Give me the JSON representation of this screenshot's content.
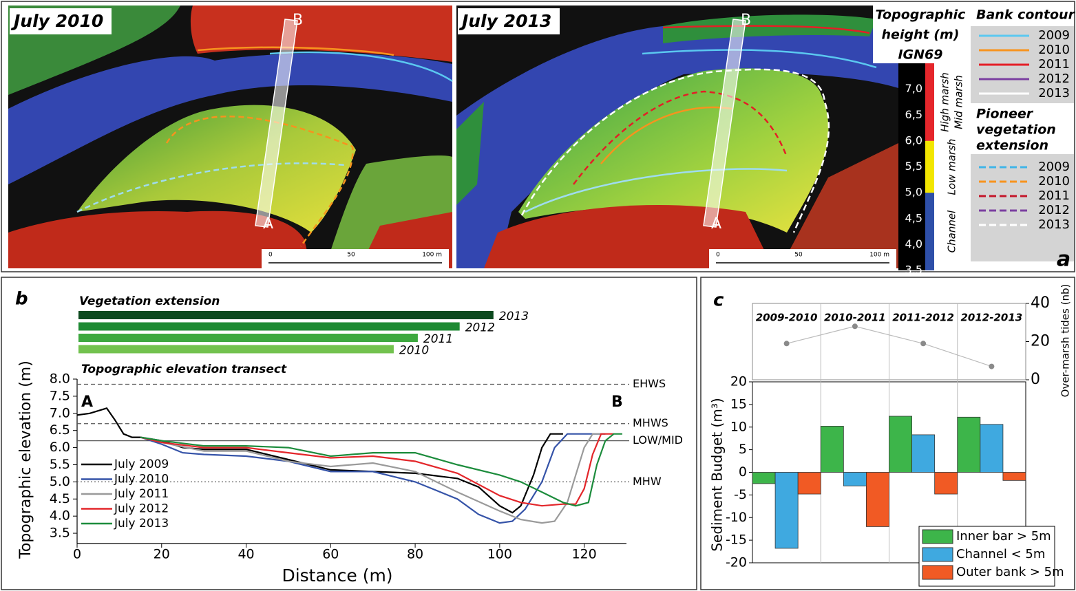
{
  "panel_a": {
    "letter": "a",
    "maps": [
      {
        "title": "July 2010"
      },
      {
        "title": "July 2013"
      }
    ],
    "transect_labels": [
      "A",
      "B"
    ],
    "scale_bar": [
      "0",
      "50",
      "100 m"
    ],
    "colorbar": {
      "title_lines": [
        "Topographic",
        "height (m)",
        "IGN69"
      ],
      "range": [
        3.5,
        7.5
      ],
      "ticks": [
        {
          "value": 7.0,
          "label": "7,0"
        },
        {
          "value": 6.5,
          "label": "6,5"
        },
        {
          "value": 6.0,
          "label": "6,0"
        },
        {
          "value": 5.5,
          "label": "5,5"
        },
        {
          "value": 5.0,
          "label": "5,0"
        },
        {
          "value": 4.5,
          "label": "4,5"
        },
        {
          "value": 4.0,
          "label": "4,0"
        },
        {
          "value": 3.5,
          "label": "3,5"
        }
      ],
      "zones": [
        {
          "labels": [
            "High marsh",
            "Mid marsh"
          ],
          "range": [
            6.0,
            7.5
          ],
          "color": "#e5262b"
        },
        {
          "labels": [
            "Low marsh"
          ],
          "range": [
            5.0,
            6.0
          ],
          "color": "#f2e600"
        },
        {
          "labels": [
            "Channel"
          ],
          "range": [
            3.5,
            5.0
          ],
          "color": "#2e4fa8"
        }
      ]
    },
    "legend": {
      "bank_contour": {
        "title_lines": [
          "Bank contour"
        ],
        "style": "solid",
        "items": [
          {
            "label": "2009",
            "color": "#5bc8f0"
          },
          {
            "label": "2010",
            "color": "#f7931e"
          },
          {
            "label": "2011",
            "color": "#e41e26"
          },
          {
            "label": "2012",
            "color": "#7b3fa0"
          },
          {
            "label": "2013",
            "color": "#ffffff"
          }
        ]
      },
      "pioneer": {
        "title_lines": [
          "Pioneer",
          "vegetation",
          "extension"
        ],
        "style": "dashed",
        "items": [
          {
            "label": "2009",
            "color": "#3fb5e8"
          },
          {
            "label": "2010",
            "color": "#f7931e"
          },
          {
            "label": "2011",
            "color": "#c4162a"
          },
          {
            "label": "2012",
            "color": "#7b3fa0"
          },
          {
            "label": "2013",
            "color": "#ffffff"
          }
        ]
      }
    }
  },
  "chart_data": [
    {
      "type": "barh",
      "title": "Vegetation extension",
      "categories": [
        "2013",
        "2012",
        "2011",
        "2010"
      ],
      "values": [
        98.2,
        90.2,
        80.3,
        74.6
      ],
      "colors": [
        "#0d4a1f",
        "#1e8a33",
        "#3da83f",
        "#72c24e"
      ],
      "xlim": [
        0,
        130
      ]
    },
    {
      "type": "line",
      "letter": "b",
      "title": "Topographic elevation transect",
      "x_label": "Distance (m)",
      "y_label": "Topographic elevation (m)",
      "xlim": [
        0,
        130
      ],
      "xticks": [
        0,
        20,
        40,
        60,
        80,
        100,
        120
      ],
      "ylim": [
        3.2,
        8.0
      ],
      "yticks": [
        3.5,
        {
          "value": 4,
          "label": "4.0"
        },
        4.5,
        {
          "value": 5,
          "label": "5.0"
        },
        5.5,
        {
          "value": 6,
          "label": "6.0"
        },
        6.5,
        {
          "value": 7,
          "label": "7.0"
        },
        7.5,
        {
          "value": 8,
          "label": "8.0"
        }
      ],
      "annotations": [
        "A",
        "B"
      ],
      "reference_lines": [
        {
          "value": 7.85,
          "label": "EHWS",
          "style": "dashed"
        },
        {
          "value": 6.7,
          "label": "MHWS",
          "style": "dashed"
        },
        {
          "value": 6.2,
          "label": "LOW/MID",
          "style": "solid"
        },
        {
          "value": 5.0,
          "label": "MHW",
          "style": "dotted"
        }
      ],
      "series": [
        {
          "name": "July 2009",
          "color": "#000000",
          "x": [
            0,
            3,
            7,
            9,
            11,
            13,
            15,
            20,
            25,
            30,
            40,
            50,
            60,
            70,
            80,
            90,
            95,
            100,
            103,
            105,
            108,
            110,
            112,
            115
          ],
          "values": [
            6.95,
            7.0,
            7.15,
            6.8,
            6.4,
            6.3,
            6.3,
            6.2,
            6.0,
            5.95,
            5.95,
            5.65,
            5.35,
            5.3,
            5.25,
            5.1,
            4.85,
            4.3,
            4.1,
            4.3,
            5.2,
            6.0,
            6.4,
            6.4
          ]
        },
        {
          "name": "July 2010",
          "color": "#3553a8",
          "x": [
            15,
            20,
            25,
            30,
            40,
            50,
            60,
            70,
            80,
            90,
            95,
            100,
            103,
            106,
            110,
            113,
            116,
            125
          ],
          "values": [
            6.3,
            6.1,
            5.85,
            5.8,
            5.75,
            5.6,
            5.3,
            5.3,
            5.0,
            4.5,
            4.05,
            3.8,
            3.85,
            4.2,
            5.0,
            6.0,
            6.4,
            6.4
          ]
        },
        {
          "name": "July 2011",
          "color": "#9a9a9a",
          "x": [
            15,
            20,
            30,
            40,
            50,
            60,
            70,
            80,
            90,
            100,
            105,
            110,
            113,
            116,
            118,
            120,
            122,
            125
          ],
          "values": [
            6.3,
            6.15,
            5.9,
            5.9,
            5.6,
            5.45,
            5.55,
            5.3,
            4.7,
            4.15,
            3.9,
            3.8,
            3.85,
            4.4,
            5.2,
            6.0,
            6.4,
            6.4
          ]
        },
        {
          "name": "July 2012",
          "color": "#e3262a",
          "x": [
            15,
            20,
            30,
            40,
            50,
            60,
            70,
            80,
            90,
            100,
            105,
            110,
            115,
            118,
            120,
            122,
            124,
            127
          ],
          "values": [
            6.3,
            6.15,
            6.0,
            6.0,
            5.85,
            5.7,
            5.75,
            5.6,
            5.25,
            4.6,
            4.4,
            4.3,
            4.35,
            4.35,
            4.8,
            5.8,
            6.4,
            6.4
          ]
        },
        {
          "name": "July 2013",
          "color": "#1c8c3c",
          "x": [
            15,
            20,
            30,
            40,
            50,
            60,
            70,
            80,
            90,
            100,
            105,
            110,
            115,
            118,
            121,
            123,
            125,
            127,
            129
          ],
          "values": [
            6.3,
            6.2,
            6.05,
            6.05,
            6.0,
            5.75,
            5.85,
            5.85,
            5.5,
            5.2,
            5.0,
            4.7,
            4.4,
            4.3,
            4.4,
            5.5,
            6.2,
            6.4,
            6.4
          ]
        }
      ]
    },
    {
      "type": "bar",
      "letter": "c",
      "y_label": "Sediment Budget (m³)",
      "categories": [
        "2009-2010",
        "2010-2011",
        "2011-2012",
        "2012-2013"
      ],
      "ylim": [
        -20,
        20
      ],
      "yticks": [
        -20,
        -15,
        -10,
        -5,
        0,
        5,
        10,
        15,
        20
      ],
      "legend_position": "lower right",
      "series": [
        {
          "name": "Inner bar > 5m",
          "color": "#3db54a",
          "values": [
            -2.5,
            10.2,
            12.4,
            12.2
          ]
        },
        {
          "name": "Channel < 5m",
          "color": "#3fa9e0",
          "values": [
            -16.8,
            -3.0,
            8.3,
            10.6
          ]
        },
        {
          "name": "Outer bank > 5m",
          "color": "#f15a24",
          "values": [
            -4.8,
            -12.0,
            -4.8,
            -1.8
          ]
        }
      ]
    },
    {
      "type": "line",
      "y_label": "Over-marsh tides (nb)",
      "values": [
        19,
        28,
        19,
        7
      ],
      "color": "#8a8a8a",
      "ylim": [
        0,
        40
      ],
      "yticks": [
        0,
        20,
        40
      ],
      "y_axis_side": "right"
    }
  ]
}
